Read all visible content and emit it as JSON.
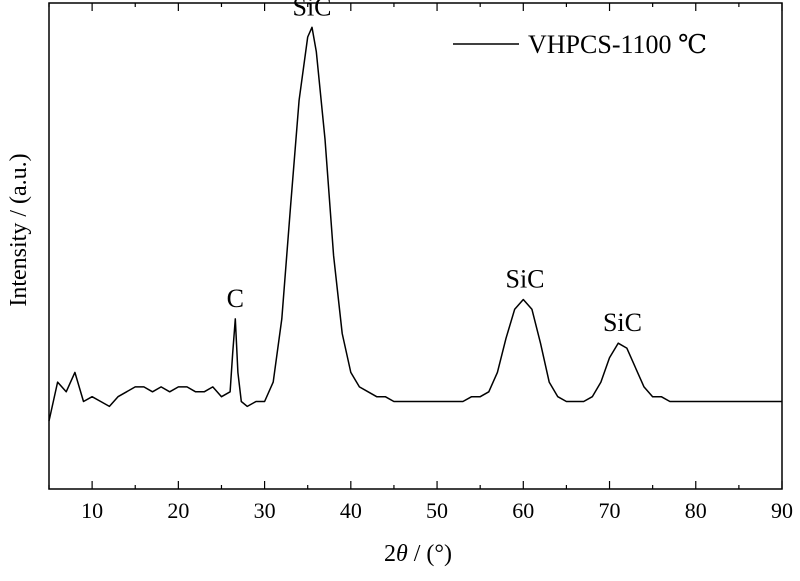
{
  "chart_data": {
    "type": "line",
    "title": "",
    "xlabel_prefix": "2",
    "xlabel_symbol": "θ",
    "xlabel_suffix": " / (°)",
    "ylabel": "Intensity / (a.u.)",
    "xlim": [
      5,
      90
    ],
    "ylim": [
      0,
      100
    ],
    "y_ticks_shown": false,
    "grid": false,
    "legend_position": "top-right",
    "x_ticks": [
      "10",
      "20",
      "30",
      "40",
      "50",
      "60",
      "70",
      "80",
      "90"
    ],
    "series": [
      {
        "name": "VHPCS-1100 ℃",
        "color": "#000000",
        "x": [
          5,
          6,
          7,
          8,
          9,
          10,
          11,
          12,
          13,
          14,
          15,
          16,
          17,
          18,
          19,
          20,
          21,
          22,
          23,
          24,
          25,
          26,
          26.3,
          26.6,
          26.9,
          27.3,
          28,
          29,
          30,
          31,
          32,
          33,
          34,
          35,
          35.5,
          36,
          37,
          38,
          39,
          40,
          41,
          42,
          43,
          44,
          45,
          46,
          47,
          48,
          49,
          50,
          51,
          52,
          53,
          54,
          55,
          56,
          57,
          58,
          59,
          60,
          61,
          62,
          63,
          64,
          65,
          66,
          67,
          68,
          69,
          70,
          71,
          72,
          73,
          74,
          75,
          76,
          77,
          78,
          79,
          80,
          81,
          82,
          83,
          84,
          85,
          86,
          87,
          88,
          89,
          90
        ],
        "values": [
          14,
          22,
          20,
          24,
          18,
          19,
          18,
          17,
          19,
          20,
          21,
          21,
          20,
          21,
          20,
          21,
          21,
          20,
          20,
          21,
          19,
          20,
          28,
          35,
          24,
          18,
          17,
          18,
          18,
          22,
          35,
          58,
          80,
          93,
          95,
          90,
          72,
          48,
          32,
          24,
          21,
          20,
          19,
          19,
          18,
          18,
          18,
          18,
          18,
          18,
          18,
          18,
          18,
          19,
          19,
          20,
          24,
          31,
          37,
          39,
          37,
          30,
          22,
          19,
          18,
          18,
          18,
          19,
          22,
          27,
          30,
          29,
          25,
          21,
          19,
          19,
          18,
          18,
          18,
          18,
          18,
          18,
          18,
          18,
          18,
          18,
          18,
          18,
          18,
          18
        ]
      }
    ],
    "annotations": [
      {
        "text": "C",
        "x": 26.6,
        "y": 35
      },
      {
        "text": "SiC",
        "x": 35.5,
        "y": 95
      },
      {
        "text": "SiC",
        "x": 60.2,
        "y": 39
      },
      {
        "text": "SiC",
        "x": 71.5,
        "y": 30
      }
    ]
  }
}
